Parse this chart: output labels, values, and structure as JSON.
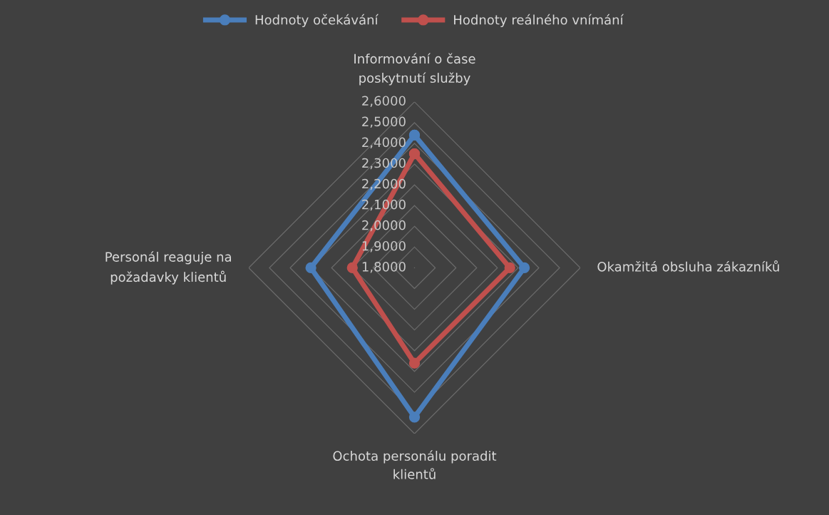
{
  "chart_data": {
    "type": "radar",
    "categories": [
      "Informování o čase\nposkytnutí služby",
      "Okamžitá obsluha zákazníků",
      "Ochota personálu poradit\nklientů",
      "Personál reaguje na\npožadavky klientů"
    ],
    "series": [
      {
        "name": "Hodnoty očekávání",
        "color": "#4a7ebb",
        "values": [
          2.44,
          2.33,
          2.52,
          2.3
        ]
      },
      {
        "name": "Hodnoty reálného vnímání",
        "color": "#c0504d",
        "values": [
          2.35,
          2.26,
          2.26,
          2.1
        ]
      }
    ],
    "ylim": [
      1.8,
      2.6
    ],
    "yticks": [
      {
        "value": 1.8,
        "label": "1,8000"
      },
      {
        "value": 1.9,
        "label": "1,9000"
      },
      {
        "value": 2.0,
        "label": "2,0000"
      },
      {
        "value": 2.1,
        "label": "2,1000"
      },
      {
        "value": 2.2,
        "label": "2,2000"
      },
      {
        "value": 2.3,
        "label": "2,3000"
      },
      {
        "value": 2.4,
        "label": "2,4000"
      },
      {
        "value": 2.5,
        "label": "2,5000"
      },
      {
        "value": 2.6,
        "label": "2,6000"
      }
    ],
    "grid": true,
    "legend": "top",
    "marker": "circle",
    "line_style": "solid"
  }
}
